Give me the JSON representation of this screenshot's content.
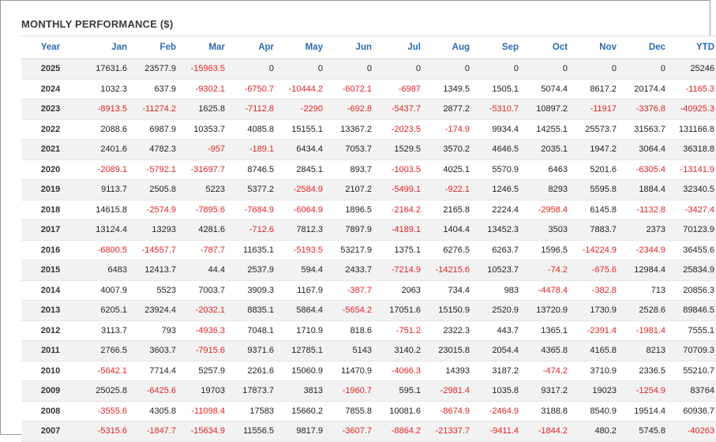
{
  "title": "MONTHLY PERFORMANCE ($)",
  "colors": {
    "header_text": "#2d6ab0",
    "negative": "#e02424",
    "positive": "#222222",
    "stripe": "#f2f2f2"
  },
  "columns": [
    "Year",
    "Jan",
    "Feb",
    "Mar",
    "Apr",
    "May",
    "Jun",
    "Jul",
    "Aug",
    "Sep",
    "Oct",
    "Nov",
    "Dec",
    "YTD"
  ],
  "rows": [
    [
      "2025",
      "17631.6",
      "23577.9",
      "-15963.5",
      "0",
      "0",
      "0",
      "0",
      "0",
      "0",
      "0",
      "0",
      "0",
      "25246"
    ],
    [
      "2024",
      "1032.3",
      "637.9",
      "-9302.1",
      "-6750.7",
      "-10444.2",
      "-6072.1",
      "-6987",
      "1349.5",
      "1505.1",
      "5074.4",
      "8617.2",
      "20174.4",
      "-1165.3"
    ],
    [
      "2023",
      "-8913.5",
      "-11274.2",
      "1625.8",
      "-7112.8",
      "-2290",
      "-692.8",
      "-5437.7",
      "2877.2",
      "-5310.7",
      "10897.2",
      "-11917",
      "-3376.8",
      "-40925.3"
    ],
    [
      "2022",
      "2088.6",
      "6987.9",
      "10353.7",
      "4085.8",
      "15155.1",
      "13367.2",
      "-2023.5",
      "-174.9",
      "9934.4",
      "14255.1",
      "25573.7",
      "31563.7",
      "131166.8"
    ],
    [
      "2021",
      "2401.6",
      "4782.3",
      "-957",
      "-189.1",
      "6434.4",
      "7053.7",
      "1529.5",
      "3570.2",
      "4646.5",
      "2035.1",
      "1947.2",
      "3064.4",
      "36318.8"
    ],
    [
      "2020",
      "-2089.1",
      "-5792.1",
      "-31697.7",
      "8746.5",
      "2845.1",
      "893.7",
      "-1003.5",
      "4025.1",
      "5570.9",
      "6463",
      "5201.6",
      "-6305.4",
      "-13141.9"
    ],
    [
      "2019",
      "9113.7",
      "2505.8",
      "5223",
      "5377.2",
      "-2584.9",
      "2107.2",
      "-5499.1",
      "-922.1",
      "1246.5",
      "8293",
      "5595.8",
      "1884.4",
      "32340.5"
    ],
    [
      "2018",
      "14615.8",
      "-2574.9",
      "-7895.6",
      "-7684.9",
      "-6064.9",
      "1896.5",
      "-2164.2",
      "2165.8",
      "2224.4",
      "-2958.4",
      "6145.8",
      "-1132.8",
      "-3427.4"
    ],
    [
      "2017",
      "13124.4",
      "13293",
      "4281.6",
      "-712.6",
      "7812.3",
      "7897.9",
      "-4189.1",
      "1404.4",
      "13452.3",
      "3503",
      "7883.7",
      "2373",
      "70123.9"
    ],
    [
      "2016",
      "-6800.5",
      "-14557.7",
      "-787.7",
      "11635.1",
      "-5193.5",
      "53217.9",
      "1375.1",
      "6276.5",
      "6263.7",
      "1596.5",
      "-14224.9",
      "-2344.9",
      "36455.6"
    ],
    [
      "2015",
      "6483",
      "12413.7",
      "44.4",
      "2537.9",
      "594.4",
      "2433.7",
      "-7214.9",
      "-14215.6",
      "10523.7",
      "-74.2",
      "-675.6",
      "12984.4",
      "25834.9"
    ],
    [
      "2014",
      "4007.9",
      "5523",
      "7003.7",
      "3909.3",
      "1167.9",
      "-387.7",
      "2063",
      "734.4",
      "983",
      "-4478.4",
      "-382.8",
      "713",
      "20856.3"
    ],
    [
      "2013",
      "6205.1",
      "23924.4",
      "-2032.1",
      "8835.1",
      "5864.4",
      "-5654.2",
      "17051.6",
      "15150.9",
      "2520.9",
      "13720.9",
      "1730.9",
      "2528.6",
      "89846.5"
    ],
    [
      "2012",
      "3113.7",
      "793",
      "-4936.3",
      "7048.1",
      "1710.9",
      "818.6",
      "-751.2",
      "2322.3",
      "443.7",
      "1365.1",
      "-2391.4",
      "-1981.4",
      "7555.1"
    ],
    [
      "2011",
      "2766.5",
      "3603.7",
      "-7915.6",
      "9371.6",
      "12785.1",
      "5143",
      "3140.2",
      "23015.8",
      "2054.4",
      "4365.8",
      "4165.8",
      "8213",
      "70709.3"
    ],
    [
      "2010",
      "-5642.1",
      "7714.4",
      "5257.9",
      "2261.6",
      "15060.9",
      "11470.9",
      "-4066.3",
      "14393",
      "3187.2",
      "-474.2",
      "3710.9",
      "2336.5",
      "55210.7"
    ],
    [
      "2009",
      "25025.8",
      "-6425.6",
      "19703",
      "17873.7",
      "3813",
      "-1960.7",
      "595.1",
      "-2981.4",
      "1035.8",
      "9317.2",
      "19023",
      "-1254.9",
      "83764"
    ],
    [
      "2008",
      "-3555.6",
      "4305.8",
      "-11098.4",
      "17583",
      "15660.2",
      "7855.8",
      "10081.6",
      "-8674.9",
      "-2464.9",
      "3188.8",
      "8540.9",
      "19514.4",
      "60936.7"
    ],
    [
      "2007",
      "-5315.6",
      "-1847.7",
      "-15634.9",
      "11556.5",
      "9817.9",
      "-3607.7",
      "-8864.2",
      "-21337.7",
      "-9411.4",
      "-1844.2",
      "480.2",
      "5745.8",
      "-40263"
    ]
  ]
}
